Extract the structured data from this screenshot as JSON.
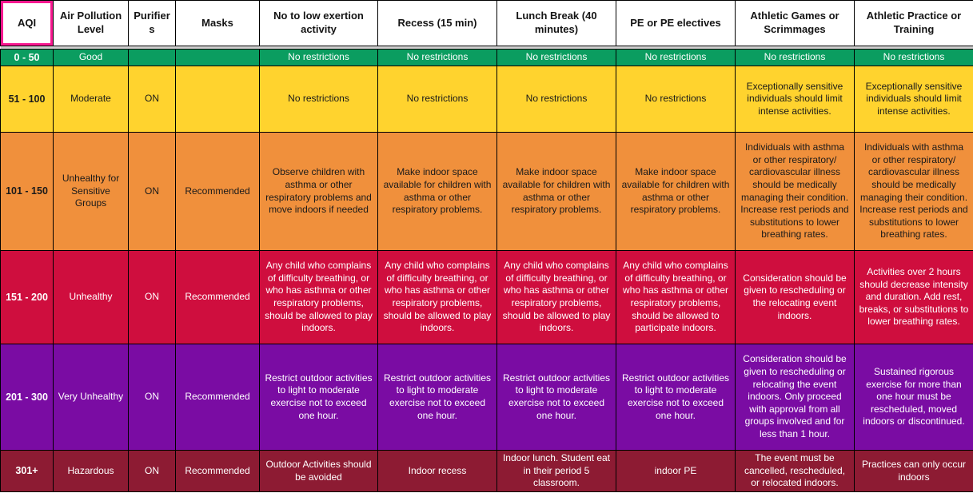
{
  "colors": {
    "selection_highlight": "#F7188F",
    "grid": "#000000",
    "frozen_divider": "#CFCFCF",
    "header_bg": "#FFFFFF",
    "good": "#0B9D60",
    "moderate": "#FFD32E",
    "unhealthy_sensitive": "#F0903C",
    "unhealthy": "#CF0E3E",
    "very_unhealthy": "#7A0CA3",
    "hazardous": "#8D1B33"
  },
  "table": {
    "columns": [
      {
        "label": "AQI",
        "selected": true
      },
      {
        "label": "Air Pollution Level"
      },
      {
        "label": "Purifiers"
      },
      {
        "label": "Masks"
      },
      {
        "label": "No to low exertion activity"
      },
      {
        "label": "Recess (15 min)"
      },
      {
        "label": "Lunch Break (40 minutes)"
      },
      {
        "label": "PE or PE electives"
      },
      {
        "label": "Athletic Games or Scrimmages"
      },
      {
        "label": "Athletic Practice or Training"
      }
    ],
    "rows": [
      {
        "key": "good",
        "bg": "#0B9D60",
        "fg": "#FFFFFF",
        "cells": [
          "0 - 50",
          "Good",
          "",
          "",
          "No restrictions",
          "No restrictions",
          "No restrictions",
          "No restrictions",
          "No restrictions",
          "No restrictions"
        ]
      },
      {
        "key": "moderate",
        "bg": "#FFD32E",
        "fg": "#1A1A1A",
        "cells": [
          "51 - 100",
          "Moderate",
          "ON",
          "",
          "No restrictions",
          "No restrictions",
          "No restrictions",
          "No restrictions",
          "Exceptionally sensitive individuals should limit intense activities.",
          "Exceptionally sensitive individuals should limit intense activities."
        ]
      },
      {
        "key": "unhealthy-for-sensitive-groups",
        "bg": "#F0903C",
        "fg": "#1A1A1A",
        "cells": [
          "101 - 150",
          "Unhealthy for Sensitive Groups",
          "ON",
          "Recommended",
          "Observe children with asthma or other respiratory problems and move indoors if needed",
          "Make indoor space available for children with asthma or other respiratory problems.",
          "Make indoor space available for children with asthma or other respiratory problems.",
          "Make indoor space available for children with asthma or other respiratory problems.",
          "Individuals with asthma or other respiratory/ cardiovascular illness should be medically managing their condition. Increase rest periods and substitutions to lower breathing rates.",
          "Individuals with asthma or other respiratory/ cardiovascular illness should be medically managing their condition. Increase rest periods and substitutions to lower breathing rates."
        ]
      },
      {
        "key": "unhealthy",
        "bg": "#CF0E3E",
        "fg": "#FFFFFF",
        "cells": [
          "151 - 200",
          "Unhealthy",
          "ON",
          "Recommended",
          "Any child who complains of difficulty breathing, or who has asthma or other respiratory problems, should be allowed to play indoors.",
          "Any child who complains of difficulty breathing, or who has asthma or other respiratory problems, should be allowed to play indoors.",
          "Any child who complains of difficulty breathing, or who has asthma or other respiratory problems, should be allowed to play indoors.",
          "Any child who complains of difficulty breathing, or who has asthma or other respiratory problems, should be allowed to participate indoors.",
          "Consideration should be given to rescheduling or the relocating event indoors.",
          "Activities over 2 hours should decrease intensity and duration. Add rest, breaks, or substitutions to lower breathing rates."
        ]
      },
      {
        "key": "very-unhealthy",
        "bg": "#7A0CA3",
        "fg": "#FFFFFF",
        "cells": [
          "201 - 300",
          "Very Unhealthy",
          "ON",
          "Recommended",
          "Restrict outdoor activities to light to moderate exercise not to exceed one hour.",
          "Restrict outdoor activities to light to moderate exercise not to exceed one hour.",
          "Restrict outdoor activities to light to moderate exercise not to exceed one hour.",
          "Restrict outdoor activities to light to moderate exercise not to exceed one hour.",
          "Consideration should be given to rescheduling or relocating the event indoors. Only proceed with approval from all groups involved and for less than 1 hour.",
          "Sustained rigorous exercise for more than one hour must be rescheduled, moved indoors or discontinued."
        ]
      },
      {
        "key": "hazardous",
        "bg": "#8D1B33",
        "fg": "#FFFFFF",
        "cells": [
          "301+",
          "Hazardous",
          "ON",
          "Recommended",
          "Outdoor Activities should be avoided",
          "Indoor recess",
          "Indoor lunch. Student eat in their period 5 classroom.",
          "indoor PE",
          "The event must be cancelled, rescheduled, or relocated indoors.",
          "Practices can only occur indoors"
        ]
      }
    ]
  }
}
